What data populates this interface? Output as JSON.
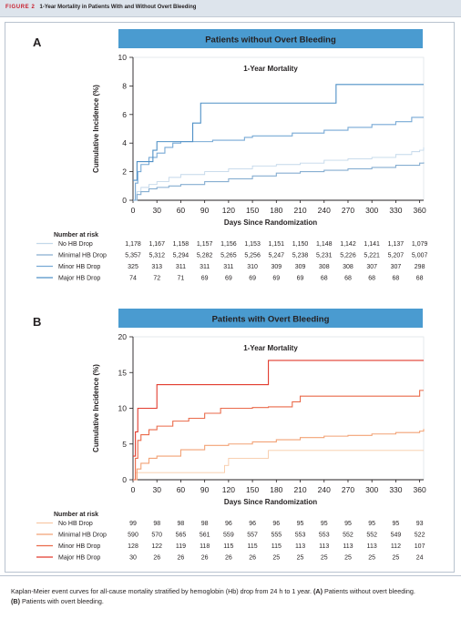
{
  "figure": {
    "tag": "FIGURE 2",
    "title": "1-Year Mortality in Patients With and Without Overt Bleeding"
  },
  "caption": {
    "text": "Kaplan-Meier event curves for all-cause mortality stratified by hemoglobin (Hb) drop from 24 h to 1 year.",
    "a_letter": "(A)",
    "a_text": "Patients without overt bleeding.",
    "b_letter": "(B)",
    "b_text": "Patients with overt bleeding."
  },
  "colors": {
    "header_bg": "#4a9bd0",
    "panel_a": [
      "#c3d8ea",
      "#86aed1",
      "#77a9d5",
      "#4f90c6"
    ],
    "panel_b": [
      "#f8c9a6",
      "#f2a276",
      "#ea6a4a",
      "#e23b2e"
    ]
  },
  "chart_data": [
    {
      "type": "line",
      "step": true,
      "panel_letter": "A",
      "header": "Patients without Overt Bleeding",
      "title": "1-Year Mortality",
      "xlabel": "Days Since Randomization",
      "ylabel": "Cumulative Incidence (%)",
      "xlim": [
        0,
        365
      ],
      "ylim": [
        0,
        10
      ],
      "xticks": [
        0,
        30,
        60,
        90,
        120,
        150,
        180,
        210,
        240,
        270,
        300,
        330,
        360
      ],
      "yticks": [
        0,
        2,
        4,
        6,
        8,
        10
      ],
      "risk_header": "Number at risk",
      "risk_days": [
        0,
        30,
        60,
        90,
        120,
        150,
        180,
        210,
        240,
        270,
        300,
        330,
        360
      ],
      "series": [
        {
          "name": "No HB Drop",
          "x": [
            0,
            5,
            10,
            20,
            30,
            45,
            60,
            90,
            120,
            150,
            180,
            210,
            240,
            270,
            300,
            330,
            350,
            360,
            365
          ],
          "y": [
            0,
            0.6,
            0.9,
            1.1,
            1.3,
            1.6,
            1.8,
            2.0,
            2.2,
            2.4,
            2.5,
            2.6,
            2.8,
            2.9,
            3.0,
            3.2,
            3.4,
            3.5,
            3.7
          ],
          "risk": [
            "1,178",
            "1,167",
            "1,158",
            "1,157",
            "1,156",
            "1,153",
            "1,151",
            "1,150",
            "1,148",
            "1,142",
            "1,141",
            "1,137",
            "1,079"
          ]
        },
        {
          "name": "Minimal HB Drop",
          "x": [
            0,
            5,
            10,
            20,
            30,
            45,
            60,
            90,
            120,
            150,
            180,
            210,
            240,
            270,
            300,
            330,
            360,
            365
          ],
          "y": [
            0,
            0.4,
            0.6,
            0.8,
            0.9,
            1.0,
            1.1,
            1.3,
            1.5,
            1.7,
            1.9,
            2.0,
            2.1,
            2.2,
            2.3,
            2.45,
            2.6,
            2.65
          ],
          "risk": [
            "5,357",
            "5,312",
            "5,294",
            "5,282",
            "5,265",
            "5,256",
            "5,247",
            "5,238",
            "5,231",
            "5,226",
            "5,221",
            "5,207",
            "5,007"
          ]
        },
        {
          "name": "Minor HB Drop",
          "x": [
            0,
            3,
            6,
            10,
            20,
            30,
            40,
            50,
            60,
            100,
            140,
            150,
            180,
            200,
            240,
            270,
            300,
            330,
            350,
            365
          ],
          "y": [
            0,
            1.2,
            2.0,
            2.5,
            3.0,
            3.3,
            3.7,
            4.0,
            4.1,
            4.2,
            4.4,
            4.5,
            4.5,
            4.7,
            4.9,
            5.1,
            5.3,
            5.5,
            5.8,
            5.8
          ],
          "risk": [
            "325",
            "313",
            "311",
            "311",
            "311",
            "310",
            "309",
            "309",
            "308",
            "308",
            "307",
            "307",
            "298"
          ]
        },
        {
          "name": "Major HB Drop",
          "x": [
            0,
            5,
            10,
            20,
            25,
            30,
            60,
            75,
            85,
            120,
            200,
            255,
            365
          ],
          "y": [
            1.4,
            2.7,
            2.7,
            2.7,
            3.5,
            4.1,
            4.1,
            5.4,
            6.8,
            6.8,
            6.8,
            8.1,
            8.1
          ],
          "risk": [
            "74",
            "72",
            "71",
            "69",
            "69",
            "69",
            "69",
            "69",
            "68",
            "68",
            "68",
            "68",
            "68"
          ]
        }
      ]
    },
    {
      "type": "line",
      "step": true,
      "panel_letter": "B",
      "header": "Patients with Overt Bleeding",
      "title": "1-Year Mortality",
      "xlabel": "Days Since Randomization",
      "ylabel": "Cumulative Incidence (%)",
      "xlim": [
        0,
        365
      ],
      "ylim": [
        0,
        20
      ],
      "xticks": [
        0,
        30,
        60,
        90,
        120,
        150,
        180,
        210,
        240,
        270,
        300,
        330,
        360
      ],
      "yticks": [
        0,
        5,
        10,
        15,
        20
      ],
      "risk_header": "Number at risk",
      "risk_days": [
        0,
        30,
        60,
        90,
        120,
        150,
        180,
        210,
        240,
        270,
        300,
        330,
        360
      ],
      "series": [
        {
          "name": "No HB Drop",
          "x": [
            0,
            3,
            110,
            115,
            120,
            150,
            170,
            365
          ],
          "y": [
            0,
            1.0,
            1.0,
            2.0,
            3.0,
            3.0,
            4.1,
            4.1
          ],
          "risk": [
            "99",
            "98",
            "98",
            "98",
            "96",
            "96",
            "96",
            "95",
            "95",
            "95",
            "95",
            "95",
            "93"
          ]
        },
        {
          "name": "Minimal HB Drop",
          "x": [
            0,
            5,
            10,
            20,
            30,
            60,
            90,
            120,
            150,
            180,
            210,
            240,
            270,
            300,
            330,
            360,
            365
          ],
          "y": [
            0,
            1.5,
            2.3,
            3.0,
            3.3,
            4.2,
            4.8,
            5.0,
            5.3,
            5.6,
            5.9,
            6.1,
            6.2,
            6.4,
            6.6,
            6.8,
            7.1
          ],
          "risk": [
            "590",
            "570",
            "565",
            "561",
            "559",
            "557",
            "555",
            "553",
            "553",
            "552",
            "552",
            "549",
            "522"
          ]
        },
        {
          "name": "Minor HB Drop",
          "x": [
            0,
            3,
            6,
            10,
            20,
            30,
            50,
            70,
            90,
            110,
            150,
            170,
            200,
            210,
            240,
            280,
            320,
            350,
            360,
            365
          ],
          "y": [
            0,
            3.0,
            5.5,
            6.3,
            7.0,
            7.5,
            8.2,
            8.6,
            9.3,
            10.0,
            10.1,
            10.2,
            10.9,
            11.7,
            11.7,
            11.7,
            11.7,
            11.7,
            12.5,
            12.5
          ],
          "risk": [
            "128",
            "122",
            "119",
            "118",
            "115",
            "115",
            "115",
            "113",
            "113",
            "113",
            "113",
            "112",
            "107"
          ]
        },
        {
          "name": "Major HB Drop",
          "x": [
            0,
            3,
            6,
            30,
            170,
            365
          ],
          "y": [
            3.3,
            6.7,
            10.0,
            13.3,
            16.7,
            16.7
          ],
          "risk": [
            "30",
            "26",
            "26",
            "26",
            "26",
            "26",
            "25",
            "25",
            "25",
            "25",
            "25",
            "25",
            "24"
          ]
        }
      ]
    }
  ]
}
